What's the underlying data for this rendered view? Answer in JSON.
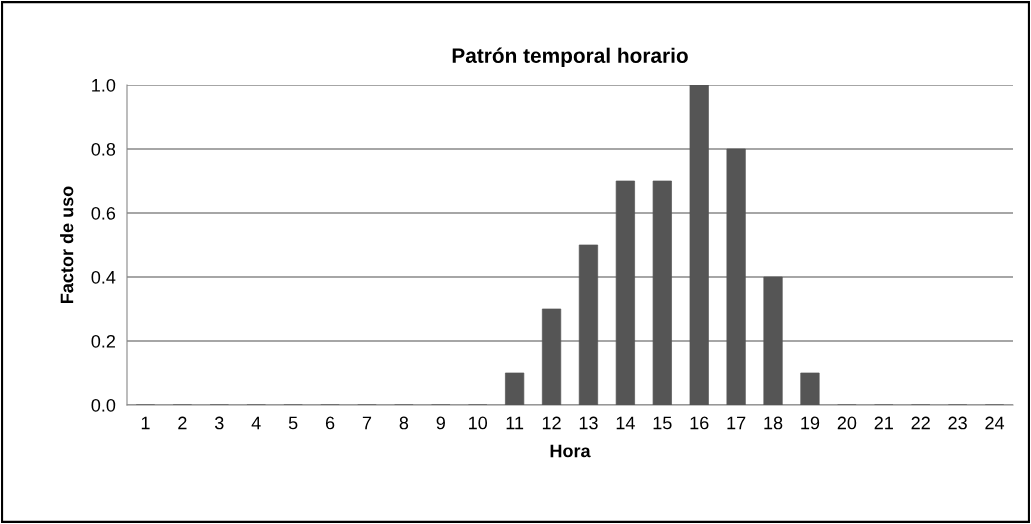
{
  "chart_data": {
    "type": "bar",
    "title": "Patrón temporal horario",
    "xlabel": "Hora",
    "ylabel": "Factor de uso",
    "categories": [
      "1",
      "2",
      "3",
      "4",
      "5",
      "6",
      "7",
      "8",
      "9",
      "10",
      "11",
      "12",
      "13",
      "14",
      "15",
      "16",
      "17",
      "18",
      "19",
      "20",
      "21",
      "22",
      "23",
      "24"
    ],
    "values": [
      0,
      0,
      0,
      0,
      0,
      0,
      0,
      0,
      0,
      0,
      0.1,
      0.3,
      0.5,
      0.7,
      0.7,
      1.0,
      0.8,
      0.4,
      0.1,
      0,
      0,
      0,
      0,
      0
    ],
    "color": "#555555",
    "ylim": [
      0,
      1.0
    ],
    "yticks": [
      {
        "value": 0,
        "label": "0.0"
      },
      {
        "value": 0.2,
        "label": "0.2"
      },
      {
        "value": 0.4,
        "label": "0.4"
      },
      {
        "value": 0.6,
        "label": "0.6"
      },
      {
        "value": 0.8,
        "label": "0.8"
      },
      {
        "value": 1.0,
        "label": "1.0"
      }
    ],
    "grid": "y",
    "legend": false
  }
}
